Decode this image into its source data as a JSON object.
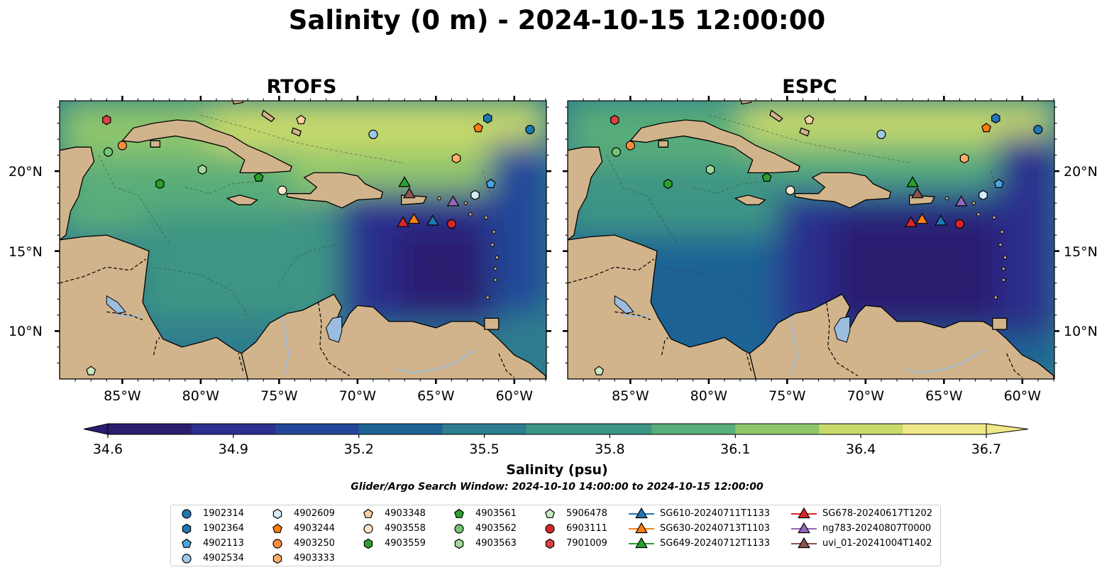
{
  "title": "Salinity (0 m) - 2024-10-15 12:00:00",
  "panels": [
    {
      "title": "RTOFS"
    },
    {
      "title": "ESPC"
    }
  ],
  "axis": {
    "lon_ticks": [
      "85°W",
      "80°W",
      "75°W",
      "70°W",
      "65°W",
      "60°W"
    ],
    "lat_ticks": [
      "20°N",
      "15°N",
      "10°N"
    ]
  },
  "colorbar": {
    "label": "Salinity (psu)",
    "ticks": [
      "34.6",
      "34.9",
      "35.2",
      "35.5",
      "35.8",
      "36.1",
      "36.4",
      "36.7"
    ],
    "min": 34.6,
    "max": 36.7,
    "colormap": [
      "#2a1d6e",
      "#2b2f8f",
      "#22479a",
      "#1c6394",
      "#2d7d8e",
      "#3c9584",
      "#59ad79",
      "#8fc66c",
      "#c9da6a",
      "#f1e889"
    ]
  },
  "search_window": "Glider/Argo Search Window: 2024-10-10 14:00:00 to 2024-10-15 12:00:00",
  "colors": {
    "land": "#d2b48c",
    "lake": "#9bbde0",
    "deep": "#2a1d6e"
  },
  "legend": [
    {
      "label": "1902314",
      "marker": "circle",
      "color": "#1f77b4"
    },
    {
      "label": "1902364",
      "marker": "hexagon",
      "color": "#1f77b4"
    },
    {
      "label": "4902113",
      "marker": "pentagon",
      "color": "#4ba3e0"
    },
    {
      "label": "4902534",
      "marker": "circle",
      "color": "#9ecae9"
    },
    {
      "label": "4902609",
      "marker": "hexagon",
      "color": "#d6ecf8"
    },
    {
      "label": "4903244",
      "marker": "pentagon",
      "color": "#ff7f0e"
    },
    {
      "label": "4903250",
      "marker": "circle",
      "color": "#fd8d3c"
    },
    {
      "label": "4903333",
      "marker": "hexagon",
      "color": "#fdae6b"
    },
    {
      "label": "4903348",
      "marker": "pentagon",
      "color": "#fdd0a2"
    },
    {
      "label": "4903558",
      "marker": "circle",
      "color": "#fde5cc"
    },
    {
      "label": "4903559",
      "marker": "hexagon",
      "color": "#2ca02c"
    },
    {
      "label": "4903561",
      "marker": "pentagon",
      "color": "#2ca02c"
    },
    {
      "label": "4903562",
      "marker": "circle",
      "color": "#74c476"
    },
    {
      "label": "4903563",
      "marker": "hexagon",
      "color": "#a1d99b"
    },
    {
      "label": "5906478",
      "marker": "pentagon",
      "color": "#c7e9c0"
    },
    {
      "label": "6903111",
      "marker": "circle",
      "color": "#d62728"
    },
    {
      "label": "7901009",
      "marker": "hexagon",
      "color": "#de4043"
    },
    {
      "label": "SG610-20240711T1133",
      "marker": "triangle",
      "color": "#1f77b4"
    },
    {
      "label": "SG630-20240713T1103",
      "marker": "triangle",
      "color": "#ff7f0e"
    },
    {
      "label": "SG649-20240712T1133",
      "marker": "triangle",
      "color": "#2ca02c"
    },
    {
      "label": "SG678-20240617T1202",
      "marker": "triangle",
      "color": "#d62728"
    },
    {
      "label": "ng783-20240807T0000",
      "marker": "triangle",
      "color": "#9467bd"
    },
    {
      "label": "uvi_01-20241004T1402",
      "marker": "triangle",
      "color": "#8c564b"
    }
  ],
  "stations": [
    {
      "label": "1902314",
      "lon": -59.0,
      "lat": 22.6
    },
    {
      "label": "1902364",
      "lon": -61.7,
      "lat": 23.3
    },
    {
      "label": "4902113",
      "lon": -61.5,
      "lat": 19.2
    },
    {
      "label": "4902534",
      "lon": -69.0,
      "lat": 22.3
    },
    {
      "label": "4902609",
      "lon": -62.5,
      "lat": 18.5
    },
    {
      "label": "4903244",
      "lon": -62.3,
      "lat": 22.7
    },
    {
      "label": "4903250",
      "lon": -85.0,
      "lat": 21.6
    },
    {
      "label": "4903333",
      "lon": -63.7,
      "lat": 20.8
    },
    {
      "label": "4903348",
      "lon": -73.6,
      "lat": 23.2
    },
    {
      "label": "4903558",
      "lon": -74.8,
      "lat": 18.8
    },
    {
      "label": "4903559",
      "lon": -82.6,
      "lat": 19.2
    },
    {
      "label": "4903561",
      "lon": -76.3,
      "lat": 19.6
    },
    {
      "label": "4903562",
      "lon": -85.9,
      "lat": 21.2
    },
    {
      "label": "4903563",
      "lon": -79.9,
      "lat": 20.1
    },
    {
      "label": "5906478",
      "lon": -87.0,
      "lat": 7.5
    },
    {
      "label": "6903111",
      "lon": -64.0,
      "lat": 16.7
    },
    {
      "label": "7901009",
      "lon": -86.0,
      "lat": 23.2
    },
    {
      "label": "SG610-20240711T1133",
      "lon": -65.2,
      "lat": 16.9
    },
    {
      "label": "SG630-20240713T1103",
      "lon": -66.4,
      "lat": 17.0
    },
    {
      "label": "SG649-20240712T1133",
      "lon": -67.0,
      "lat": 19.3
    },
    {
      "label": "SG678-20240617T1202",
      "lon": -67.1,
      "lat": 16.8
    },
    {
      "label": "ng783-20240807T0000",
      "lon": -63.9,
      "lat": 18.1
    },
    {
      "label": "uvi_01-20241004T1402",
      "lon": -66.7,
      "lat": 18.6
    }
  ]
}
